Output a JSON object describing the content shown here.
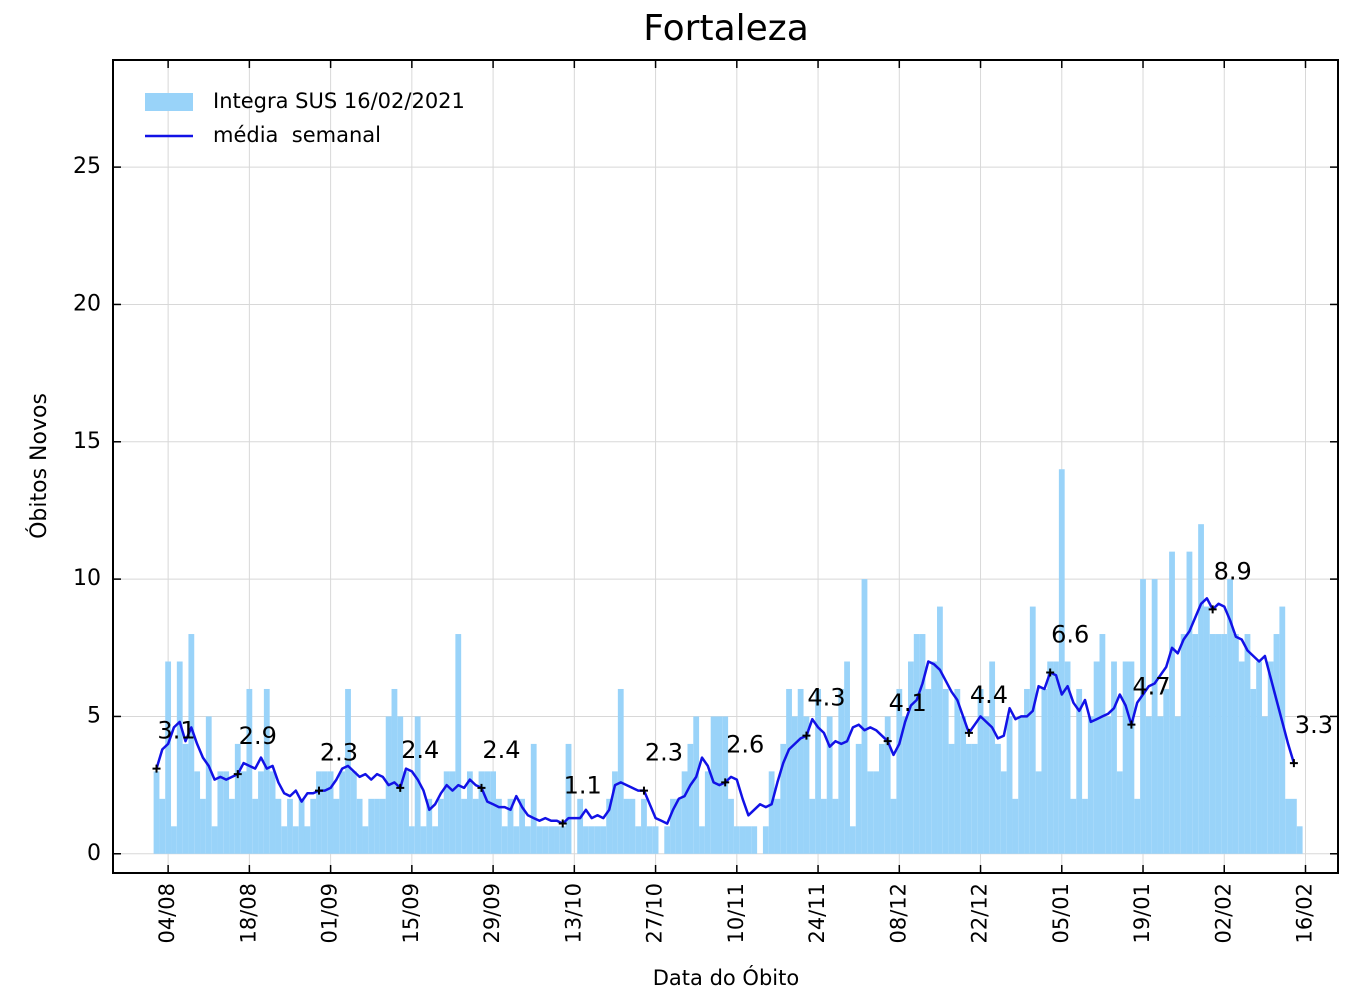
{
  "chart_data": {
    "type": "bar",
    "title": "Fortaleza",
    "x_label": "Data do Óbito",
    "y_label": "Óbitos Novos",
    "categories": [
      "02/08",
      "03/08",
      "04/08",
      "05/08",
      "06/08",
      "07/08",
      "08/08",
      "09/08",
      "10/08",
      "11/08",
      "12/08",
      "13/08",
      "14/08",
      "15/08",
      "16/08",
      "17/08",
      "18/08",
      "19/08",
      "20/08",
      "21/08",
      "22/08",
      "23/08",
      "24/08",
      "25/08",
      "26/08",
      "27/08",
      "28/08",
      "29/08",
      "30/08",
      "31/08",
      "01/09",
      "02/09",
      "03/09",
      "04/09",
      "05/09",
      "06/09",
      "07/09",
      "08/09",
      "09/09",
      "10/09",
      "11/09",
      "12/09",
      "13/09",
      "14/09",
      "15/09",
      "16/09",
      "17/09",
      "18/09",
      "19/09",
      "20/09",
      "21/09",
      "22/09",
      "23/09",
      "24/09",
      "25/09",
      "26/09",
      "27/09",
      "28/09",
      "29/09",
      "30/09",
      "01/10",
      "02/10",
      "03/10",
      "04/10",
      "05/10",
      "06/10",
      "07/10",
      "08/10",
      "09/10",
      "10/10",
      "11/10",
      "12/10",
      "13/10",
      "14/10",
      "15/10",
      "16/10",
      "17/10",
      "18/10",
      "19/10",
      "20/10",
      "21/10",
      "22/10",
      "23/10",
      "24/10",
      "25/10",
      "26/10",
      "27/10",
      "28/10",
      "29/10",
      "30/10",
      "31/10",
      "01/11",
      "02/11",
      "03/11",
      "04/11",
      "05/11",
      "06/11",
      "07/11",
      "08/11",
      "09/11",
      "10/11",
      "11/11",
      "12/11",
      "13/11",
      "14/11",
      "15/11",
      "16/11",
      "17/11",
      "18/11",
      "19/11",
      "20/11",
      "21/11",
      "22/11",
      "23/11",
      "24/11",
      "25/11",
      "26/11",
      "27/11",
      "28/11",
      "29/11",
      "30/11",
      "01/12",
      "02/12",
      "03/12",
      "04/12",
      "05/12",
      "06/12",
      "07/12",
      "08/12",
      "09/12",
      "10/12",
      "11/12",
      "12/12",
      "13/12",
      "14/12",
      "15/12",
      "16/12",
      "17/12",
      "18/12",
      "19/12",
      "20/12",
      "21/12",
      "22/12",
      "23/12",
      "24/12",
      "25/12",
      "26/12",
      "27/12",
      "28/12",
      "29/12",
      "30/12",
      "31/12",
      "01/01",
      "02/01",
      "03/01",
      "04/01",
      "05/01",
      "06/01",
      "07/01",
      "08/01",
      "09/01",
      "10/01",
      "11/01",
      "12/01",
      "13/01",
      "14/01",
      "15/01",
      "16/01",
      "17/01",
      "18/01",
      "19/01",
      "20/01",
      "21/01",
      "22/01",
      "23/01",
      "24/01",
      "25/01",
      "26/01",
      "27/01",
      "28/01",
      "29/01",
      "30/01",
      "31/01",
      "01/02",
      "02/02",
      "03/02",
      "04/02",
      "05/02",
      "06/02",
      "07/02",
      "08/02",
      "09/02",
      "10/02",
      "11/02",
      "12/02",
      "13/02",
      "14/02",
      "15/02"
    ],
    "series": [
      {
        "name": "Integra SUS 16/02/2021",
        "type": "bar",
        "color": "#99d3f9",
        "values": [
          3,
          2,
          7,
          1,
          7,
          4,
          8,
          3,
          2,
          5,
          1,
          3,
          3,
          2,
          4,
          3,
          6,
          2,
          3,
          6,
          3,
          2,
          1,
          2,
          1,
          2,
          1,
          2,
          3,
          3,
          3,
          2,
          3,
          6,
          3,
          2,
          1,
          2,
          2,
          2,
          5,
          6,
          5,
          3,
          1,
          5,
          1,
          2,
          1,
          2,
          3,
          3,
          8,
          2,
          3,
          2,
          3,
          3,
          3,
          2,
          1,
          2,
          1,
          2,
          1,
          4,
          1,
          1,
          1,
          1,
          1,
          4,
          0,
          2,
          1,
          1,
          1,
          1,
          2,
          3,
          6,
          2,
          2,
          1,
          2,
          1,
          1,
          0,
          1,
          2,
          2,
          3,
          4,
          5,
          1,
          3,
          5,
          5,
          5,
          2,
          1,
          1,
          1,
          1,
          0,
          1,
          3,
          2,
          4,
          6,
          5,
          6,
          5,
          2,
          6,
          2,
          5,
          2,
          6,
          7,
          1,
          4,
          10,
          3,
          3,
          4,
          5,
          2,
          6,
          5,
          7,
          8,
          8,
          6,
          7,
          9,
          6,
          4,
          6,
          5,
          4,
          4,
          6,
          5,
          7,
          4,
          3,
          5,
          2,
          5,
          6,
          9,
          3,
          6,
          7,
          7,
          14,
          7,
          2,
          6,
          2,
          5,
          7,
          8,
          5,
          7,
          3,
          7,
          7,
          2,
          10,
          5,
          10,
          5,
          6,
          11,
          5,
          8,
          11,
          8,
          12,
          9,
          8,
          8,
          8,
          10,
          8,
          7,
          8,
          6,
          7,
          5,
          7,
          8,
          9,
          2,
          2,
          1
        ]
      },
      {
        "name": "média  semanal",
        "type": "line",
        "color": "#1212e6",
        "values": [
          3.1,
          3.8,
          4.0,
          4.6,
          4.8,
          4.1,
          4.6,
          4.0,
          3.5,
          3.2,
          2.7,
          2.8,
          2.7,
          2.8,
          2.9,
          3.3,
          3.2,
          3.1,
          3.5,
          3.1,
          3.2,
          2.6,
          2.2,
          2.1,
          2.3,
          1.9,
          2.2,
          2.2,
          2.3,
          2.3,
          2.4,
          2.7,
          3.1,
          3.2,
          3.0,
          2.8,
          2.9,
          2.7,
          2.9,
          2.8,
          2.5,
          2.6,
          2.4,
          3.1,
          3.0,
          2.7,
          2.3,
          1.6,
          1.8,
          2.2,
          2.5,
          2.3,
          2.5,
          2.4,
          2.7,
          2.5,
          2.4,
          1.9,
          1.8,
          1.7,
          1.7,
          1.6,
          2.1,
          1.7,
          1.4,
          1.3,
          1.2,
          1.3,
          1.2,
          1.2,
          1.1,
          1.3,
          1.3,
          1.3,
          1.6,
          1.3,
          1.4,
          1.3,
          1.6,
          2.5,
          2.6,
          2.5,
          2.4,
          2.3,
          2.3,
          1.8,
          1.3,
          1.2,
          1.1,
          1.6,
          2.0,
          2.1,
          2.5,
          2.8,
          3.5,
          3.2,
          2.6,
          2.5,
          2.6,
          2.8,
          2.7,
          2.0,
          1.4,
          1.6,
          1.8,
          1.7,
          1.8,
          2.6,
          3.3,
          3.8,
          4.0,
          4.2,
          4.3,
          4.9,
          4.6,
          4.4,
          3.9,
          4.1,
          4.0,
          4.1,
          4.6,
          4.7,
          4.5,
          4.6,
          4.5,
          4.3,
          4.1,
          3.6,
          4.0,
          4.8,
          5.4,
          5.6,
          6.2,
          7.0,
          6.9,
          6.7,
          6.3,
          5.9,
          5.6,
          5.0,
          4.4,
          4.7,
          5.0,
          4.8,
          4.6,
          4.2,
          4.3,
          5.3,
          4.9,
          5.0,
          5.0,
          5.2,
          6.1,
          6.0,
          6.6,
          6.5,
          5.8,
          6.1,
          5.5,
          5.2,
          5.6,
          4.8,
          4.9,
          5.0,
          5.1,
          5.3,
          5.8,
          5.4,
          4.7,
          5.5,
          5.8,
          6.1,
          6.2,
          6.5,
          6.8,
          7.5,
          7.3,
          7.8,
          8.1,
          8.6,
          9.1,
          9.3,
          8.9,
          9.1,
          9.0,
          8.5,
          7.9,
          7.8,
          7.4,
          7.2,
          7.0,
          7.2,
          6.4,
          5.6,
          4.8,
          4.0,
          3.3,
          null
        ],
        "value_labels": [
          "3.1",
          null,
          null,
          null,
          null,
          null,
          null,
          null,
          null,
          null,
          null,
          null,
          null,
          null,
          "2.9",
          null,
          null,
          null,
          null,
          null,
          null,
          null,
          null,
          null,
          null,
          null,
          null,
          null,
          "2.3",
          null,
          null,
          null,
          null,
          null,
          null,
          null,
          null,
          null,
          null,
          null,
          null,
          null,
          "2.4",
          null,
          null,
          null,
          null,
          null,
          null,
          null,
          null,
          null,
          null,
          null,
          null,
          null,
          "2.4",
          null,
          null,
          null,
          null,
          null,
          null,
          null,
          null,
          null,
          null,
          null,
          null,
          null,
          "1.1",
          null,
          null,
          null,
          null,
          null,
          null,
          null,
          null,
          null,
          null,
          null,
          null,
          null,
          "2.3",
          null,
          null,
          null,
          null,
          null,
          null,
          null,
          null,
          null,
          null,
          null,
          null,
          null,
          "2.6",
          null,
          null,
          null,
          null,
          null,
          null,
          null,
          null,
          null,
          null,
          null,
          null,
          null,
          "4.3",
          null,
          null,
          null,
          null,
          null,
          null,
          null,
          null,
          null,
          null,
          null,
          null,
          null,
          "4.1",
          null,
          null,
          null,
          null,
          null,
          null,
          null,
          null,
          null,
          null,
          null,
          null,
          null,
          "4.4",
          null,
          null,
          null,
          null,
          null,
          null,
          null,
          null,
          null,
          null,
          null,
          null,
          null,
          "6.6",
          null,
          null,
          null,
          null,
          null,
          null,
          null,
          null,
          null,
          null,
          null,
          null,
          null,
          "4.7",
          null,
          null,
          null,
          null,
          null,
          null,
          null,
          null,
          null,
          null,
          null,
          null,
          null,
          "8.9",
          null,
          null,
          null,
          null,
          null,
          null,
          null,
          null,
          null,
          null,
          null,
          null,
          null,
          "3.3",
          null
        ]
      }
    ],
    "xlim": [
      -7.5,
      203.6
    ],
    "xticks": [
      {
        "value": 2,
        "label": "04/08"
      },
      {
        "value": 16,
        "label": "18/08"
      },
      {
        "value": 30,
        "label": "01/09"
      },
      {
        "value": 44,
        "label": "15/09"
      },
      {
        "value": 58,
        "label": "29/09"
      },
      {
        "value": 72,
        "label": "13/10"
      },
      {
        "value": 86,
        "label": "27/10"
      },
      {
        "value": 100,
        "label": "10/11"
      },
      {
        "value": 114,
        "label": "24/11"
      },
      {
        "value": 128,
        "label": "08/12"
      },
      {
        "value": 142,
        "label": "22/12"
      },
      {
        "value": 156,
        "label": "05/01"
      },
      {
        "value": 170,
        "label": "19/01"
      },
      {
        "value": 184,
        "label": "02/02"
      },
      {
        "value": 198,
        "label": "16/02"
      }
    ],
    "ylim": [
      -0.7,
      28.9
    ],
    "yticks": [
      0,
      5,
      10,
      15,
      20,
      25
    ],
    "grid": true,
    "legend": "upper left"
  }
}
